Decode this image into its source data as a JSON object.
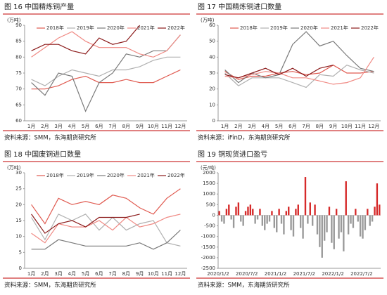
{
  "chart_data": [
    {
      "type": "line",
      "title": "图 16 中国精炼铜产量",
      "y_label": "(万吨)",
      "source": "资料来源：SMM，东海期货研究所",
      "categories": [
        "1月",
        "2月",
        "3月",
        "4月",
        "5月",
        "6月",
        "7月",
        "8月",
        "9月",
        "10月",
        "11月",
        "12月"
      ],
      "ylim": [
        60,
        90
      ],
      "yticks": [
        60,
        65,
        70,
        75,
        80,
        85,
        90
      ],
      "legend": "top",
      "series": [
        {
          "name": "2018年",
          "color": "#e05a50",
          "values": [
            70,
            70,
            71,
            73,
            74,
            72,
            72,
            73,
            72,
            72,
            74,
            76
          ]
        },
        {
          "name": "2019年",
          "color": "#b0b0b0",
          "values": [
            73,
            71,
            74,
            76,
            75,
            74,
            76,
            76,
            77,
            79,
            80,
            80
          ]
        },
        {
          "name": "2020年",
          "color": "#7a7a7a",
          "values": [
            72,
            68,
            75,
            74,
            63,
            72,
            75,
            81,
            80,
            82,
            82,
            87
          ]
        },
        {
          "name": "2021年",
          "color": "#f08a84",
          "values": [
            80,
            83,
            86,
            88,
            85,
            83,
            83,
            83,
            81,
            80,
            82,
            87
          ]
        },
        {
          "name": "2022年",
          "color": "#8b1a1a",
          "values": [
            82,
            84,
            84,
            82,
            81,
            86,
            84,
            85,
            90,
            null,
            null,
            null
          ]
        }
      ]
    },
    {
      "type": "line",
      "title": "图 17 中国精炼铜进口数量",
      "y_label": "(万吨)",
      "source": "资料来源：iFinD，东海期货研究所",
      "categories": [
        "1月",
        "2月",
        "3月",
        "4月",
        "5月",
        "6月",
        "7月",
        "8月",
        "9月",
        "10月",
        "11月",
        "12月"
      ],
      "ylim": [
        0,
        60
      ],
      "yticks": [
        0,
        10,
        20,
        30,
        40,
        50,
        60
      ],
      "legend": "top",
      "series": [
        {
          "name": "2018年",
          "color": "#e05a50",
          "values": [
            31,
            26,
            28,
            28,
            30,
            31,
            29,
            30,
            35,
            30,
            30,
            31
          ]
        },
        {
          "name": "2019年",
          "color": "#b0b0b0",
          "values": [
            30,
            22,
            27,
            27,
            27,
            24,
            21,
            29,
            28,
            35,
            32,
            30
          ]
        },
        {
          "name": "2020年",
          "color": "#7a7a7a",
          "values": [
            32,
            24,
            30,
            27,
            29,
            48,
            56,
            47,
            50,
            41,
            33,
            31
          ]
        },
        {
          "name": "2021年",
          "color": "#f08a84",
          "values": [
            28,
            27,
            29,
            31,
            30,
            27,
            27,
            25,
            23,
            24,
            27,
            40
          ]
        },
        {
          "name": "2022年",
          "color": "#8b1a1a",
          "values": [
            29,
            27,
            30,
            33,
            29,
            33,
            28,
            33,
            35,
            null,
            null,
            null
          ]
        }
      ]
    },
    {
      "type": "line",
      "title": "图 18 中国废铜进口数量",
      "y_label": "(万吨)",
      "source": "资料来源：SMM，东海期货研究所",
      "categories": [
        "1月",
        "2月",
        "3月",
        "4月",
        "5月",
        "6月",
        "7月",
        "8月",
        "9月",
        "10月",
        "11月",
        "12月"
      ],
      "ylim": [
        0,
        30
      ],
      "yticks": [
        0,
        5,
        10,
        15,
        20,
        25,
        30
      ],
      "legend": "top",
      "series": [
        {
          "name": "2018年",
          "color": "#e05a50",
          "values": [
            20,
            14,
            22,
            20,
            21,
            20,
            23,
            22,
            19,
            17,
            22,
            25
          ]
        },
        {
          "name": "2019年",
          "color": "#b0b0b0",
          "values": [
            16,
            9,
            17,
            15,
            17,
            12,
            16,
            12,
            14,
            15,
            8,
            7
          ]
        },
        {
          "name": "2020年",
          "color": "#7a7a7a",
          "values": [
            6,
            6,
            9,
            8,
            7,
            7,
            7,
            7,
            8,
            6,
            8,
            12
          ]
        },
        {
          "name": "2021年",
          "color": "#f08a84",
          "values": [
            11,
            8,
            14,
            13,
            13,
            15,
            12,
            16,
            13,
            14,
            16,
            17
          ]
        },
        {
          "name": "2022年",
          "color": "#8b1a1a",
          "values": [
            17,
            11,
            14,
            15,
            13,
            16,
            16,
            16,
            17,
            null,
            null,
            null
          ]
        }
      ]
    },
    {
      "type": "bar",
      "title": "图 19 铜现货进口盈亏",
      "y_label": "(元/吨)",
      "source": "资料来源：SMM，东海期货研究所",
      "pos_color": "#d62a2a",
      "neg_color": "#9a9a9a",
      "ylim": [
        -2500,
        2000
      ],
      "yticks": [
        -2500,
        -2000,
        -1500,
        -1000,
        -500,
        0,
        500,
        1000,
        1500,
        2000
      ],
      "categories": [
        "2020/1/2",
        null,
        null,
        null,
        null,
        null,
        null,
        null,
        null,
        null,
        null,
        null,
        "2020/7/2",
        null,
        null,
        null,
        null,
        null,
        null,
        null,
        null,
        null,
        null,
        null,
        "2021/1/2",
        null,
        null,
        null,
        null,
        null,
        null,
        null,
        null,
        null,
        null,
        null,
        "2021/7/2",
        null,
        null,
        null,
        null,
        null,
        null,
        null,
        null,
        null,
        null,
        null,
        "2022/1/2",
        null,
        null,
        null,
        null,
        null,
        null,
        null,
        null,
        null,
        null,
        null,
        "2022/7/2",
        null,
        null,
        null,
        null,
        null,
        null,
        null
      ],
      "values": [
        200,
        -300,
        -400,
        300,
        500,
        -200,
        -600,
        400,
        600,
        -300,
        -500,
        200,
        400,
        500,
        300,
        -400,
        -200,
        300,
        -500,
        -700,
        -400,
        -300,
        200,
        -600,
        -800,
        300,
        -400,
        -900,
        200,
        400,
        -700,
        -1000,
        300,
        500,
        -600,
        -1100,
        1800,
        -400,
        600,
        -500,
        500,
        -900,
        -1500,
        -2000,
        -1200,
        -800,
        400,
        -1300,
        -1600,
        300,
        -1100,
        -800,
        -1700,
        1600,
        -900,
        -400,
        -600,
        300,
        -300,
        -1000,
        -1100,
        -700,
        300,
        -500,
        -300,
        400,
        1500,
        500
      ]
    }
  ]
}
